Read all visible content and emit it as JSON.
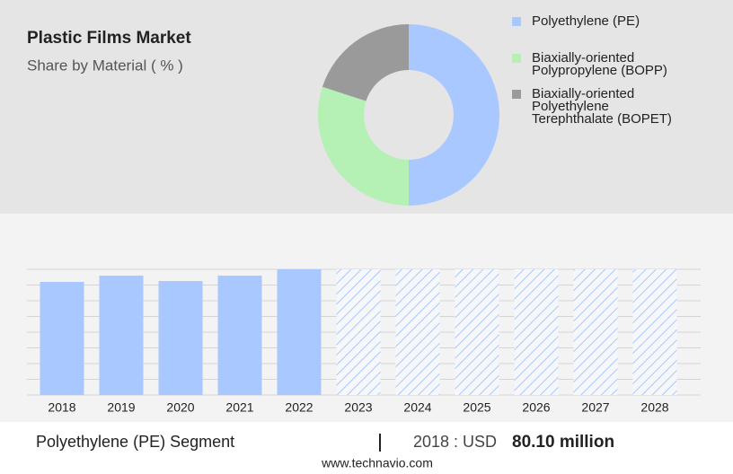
{
  "chart_data": [
    {
      "type": "donut",
      "title": "Plastic Films Market",
      "subtitle": "Share by Material ( % )",
      "categories": [
        "Polyethylene (PE)",
        "Biaxially-oriented Polypropylene (BOPP)",
        "Biaxially-oriented Polyethylene Terephthalate (BOPET)"
      ],
      "values": [
        50,
        30,
        20
      ],
      "colors": [
        "#a8c8ff",
        "#b5f0b5",
        "#9a9a9a"
      ]
    },
    {
      "type": "bar",
      "categories": [
        "2018",
        "2019",
        "2020",
        "2021",
        "2022",
        "2023",
        "2024",
        "2025",
        "2026",
        "2027",
        "2028"
      ],
      "values": [
        80.1,
        84.5,
        80.7,
        84.5,
        89.0,
        null,
        null,
        null,
        null,
        null,
        null
      ],
      "color": "#a8c8ff",
      "ylim": [
        0,
        89
      ],
      "grid": true
    }
  ],
  "footer": {
    "segment": "Polyethylene (PE) Segment",
    "highlight_label": "2018 : USD",
    "highlight_value": "80.10 million",
    "source": "www.technavio.com"
  }
}
